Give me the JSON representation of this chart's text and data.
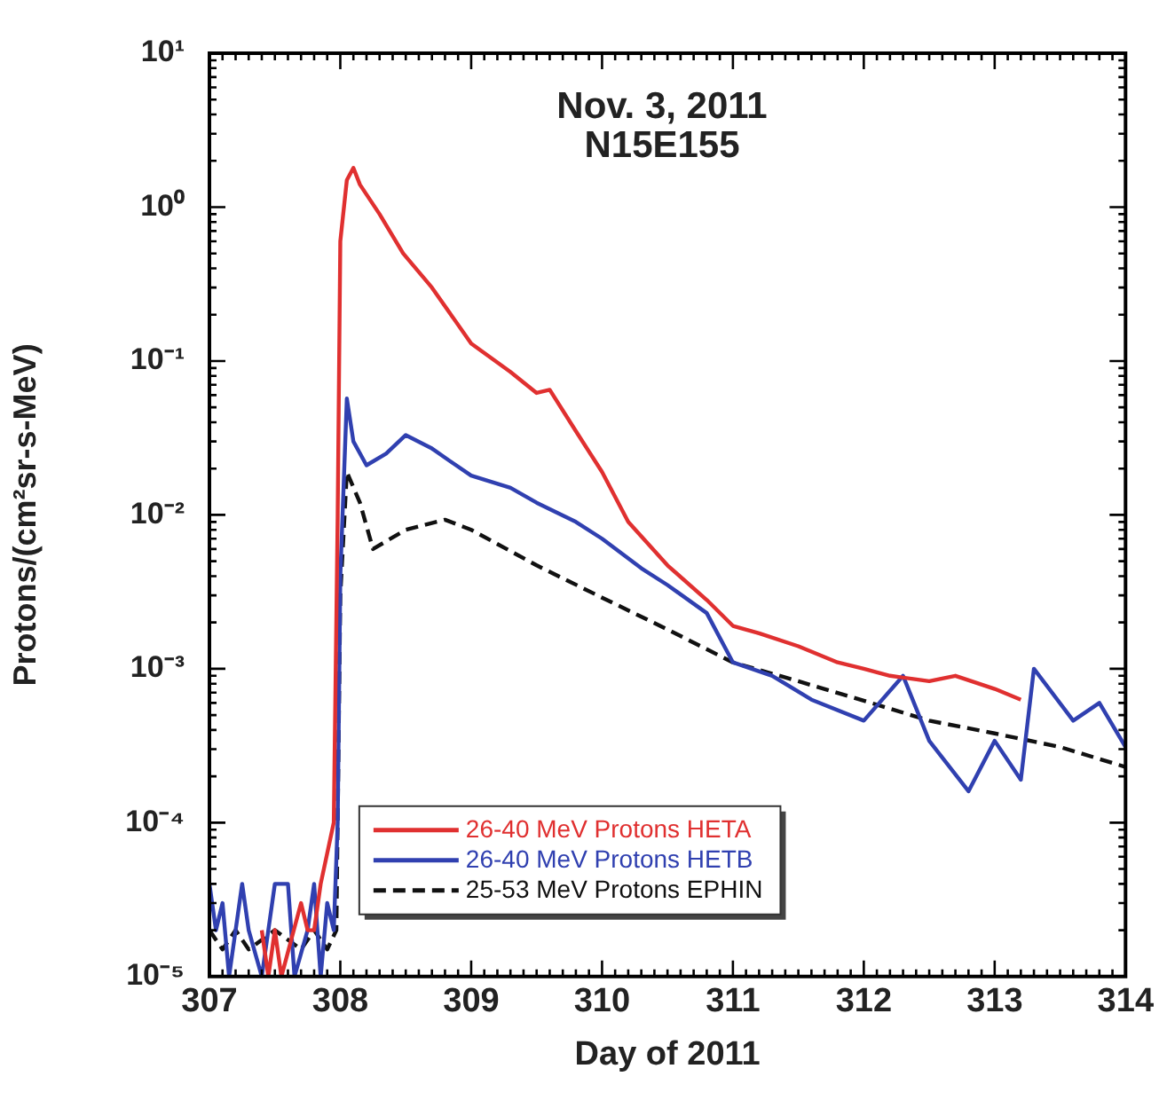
{
  "chart_data": {
    "type": "line",
    "xlabel": "Day of 2011",
    "ylabel": "Protons/(cm²sr-s-MeV)",
    "annotations": [
      "Nov. 3, 2011",
      "N15E155"
    ],
    "log": "y",
    "xlim": [
      307,
      314
    ],
    "xticks": [
      307,
      308,
      309,
      310,
      311,
      312,
      313,
      314
    ],
    "ylim": [
      1e-05,
      10
    ],
    "yticks": [
      {
        "value": 1e-05,
        "label": "10⁻⁵"
      },
      {
        "value": 0.0001,
        "label": "10⁻⁴"
      },
      {
        "value": 0.001,
        "label": "10⁻³"
      },
      {
        "value": 0.01,
        "label": "10⁻²"
      },
      {
        "value": 0.1,
        "label": "10⁻¹"
      },
      {
        "value": 1,
        "label": "10⁰"
      },
      {
        "value": 10,
        "label": "10¹"
      }
    ],
    "grid": false,
    "legend": "bottom",
    "line_style": "solid",
    "marker": "none",
    "series": [
      {
        "name": "26-40 MeV Protons HETA",
        "color": "#e03030",
        "x": [
          307.4,
          307.45,
          307.5,
          307.55,
          307.7,
          307.75,
          307.8,
          307.85,
          307.95,
          307.98,
          308.0,
          308.05,
          308.1,
          308.15,
          308.3,
          308.48,
          308.7,
          309.0,
          309.3,
          309.5,
          309.6,
          309.8,
          310.0,
          310.2,
          310.5,
          310.8,
          311.0,
          311.2,
          311.5,
          311.8,
          312.0,
          312.2,
          312.5,
          312.7,
          313.0,
          313.2
        ],
        "values": [
          2e-05,
          1e-05,
          2e-05,
          1e-05,
          3e-05,
          2e-05,
          2e-05,
          4e-05,
          0.0001,
          0.01,
          0.6,
          1.5,
          1.8,
          1.4,
          0.9,
          0.5,
          0.3,
          0.13,
          0.085,
          0.062,
          0.065,
          0.035,
          0.019,
          0.009,
          0.0047,
          0.0028,
          0.0019,
          0.0017,
          0.0014,
          0.0011,
          0.001,
          0.0009,
          0.00083,
          0.0009,
          0.00074,
          0.00063
        ]
      },
      {
        "name": "26-40 MeV Protons HETB",
        "color": "#3040b0",
        "x": [
          307.0,
          307.05,
          307.1,
          307.15,
          307.25,
          307.3,
          307.4,
          307.5,
          307.6,
          307.65,
          307.75,
          307.8,
          307.85,
          307.9,
          307.95,
          307.98,
          308.0,
          308.05,
          308.1,
          308.2,
          308.35,
          308.5,
          308.7,
          308.85,
          309.0,
          309.3,
          309.5,
          309.8,
          310.0,
          310.3,
          310.5,
          310.8,
          311.0,
          311.3,
          311.6,
          312.0,
          312.3,
          312.5,
          312.8,
          313.0,
          313.2,
          313.3,
          313.6,
          313.8,
          314.0
        ],
        "values": [
          4e-05,
          2e-05,
          3e-05,
          1e-05,
          4e-05,
          2e-05,
          1e-05,
          4e-05,
          4e-05,
          1e-05,
          2e-05,
          4e-05,
          1e-05,
          3e-05,
          2e-05,
          0.0001,
          0.004,
          0.057,
          0.03,
          0.021,
          0.025,
          0.033,
          0.027,
          0.022,
          0.018,
          0.015,
          0.012,
          0.009,
          0.007,
          0.0045,
          0.0035,
          0.0023,
          0.0011,
          0.0009,
          0.00063,
          0.00046,
          0.0009,
          0.00034,
          0.00016,
          0.00034,
          0.00019,
          0.001,
          0.00046,
          0.0006,
          0.00031
        ]
      },
      {
        "name": "25-53 MeV Protons EPHIN",
        "color": "#111111",
        "line_style": "dashed",
        "x": [
          307.0,
          307.1,
          307.2,
          307.3,
          307.5,
          307.7,
          307.8,
          307.9,
          307.97,
          308.0,
          308.05,
          308.15,
          308.25,
          308.5,
          308.8,
          309.0,
          309.5,
          310.0,
          310.5,
          311.0,
          311.5,
          312.0,
          312.5,
          313.0,
          313.5,
          314.0
        ],
        "values": [
          2e-05,
          1.5e-05,
          2e-05,
          1.5e-05,
          2e-05,
          1.5e-05,
          2e-05,
          1.5e-05,
          2e-05,
          0.003,
          0.019,
          0.012,
          0.006,
          0.008,
          0.0093,
          0.008,
          0.0047,
          0.0029,
          0.0018,
          0.0011,
          0.00083,
          0.00062,
          0.00046,
          0.00038,
          0.00031,
          0.00023
        ]
      }
    ]
  }
}
